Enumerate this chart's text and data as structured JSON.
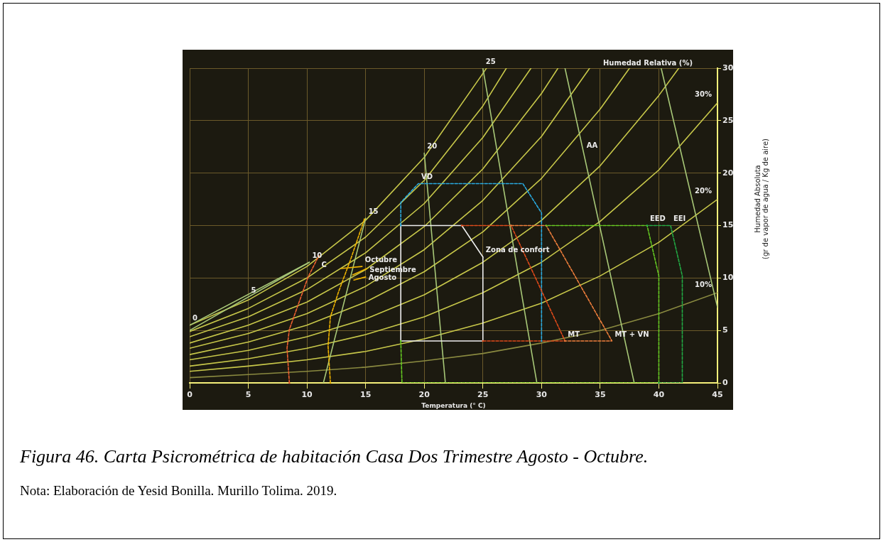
{
  "chart_data": {
    "type": "line",
    "title": "Figura 46. Carta Psicrométrica de habitación Casa Dos Trimestre Agosto - Octubre.",
    "xlabel": "Temperatura (° C)",
    "ylabel": "Humedad Absoluta\n(gr de vapor de agua / Kg de aire)",
    "xlim": [
      0,
      45
    ],
    "xticks": [
      0,
      5,
      10,
      15,
      20,
      25,
      30,
      35,
      40,
      45
    ],
    "ylim": [
      0,
      30
    ],
    "yticks": [
      0,
      5,
      10,
      15,
      20,
      25,
      30
    ],
    "grid": true,
    "marker": "none",
    "series": [
      {
        "color": "#c8c84a",
        "x": [
          0,
          5,
          10,
          15,
          20,
          25,
          25.3
        ],
        "values": [
          5.5,
          7.9,
          11.1,
          15.5,
          21.5,
          29.5,
          30
        ]
      },
      {
        "color": "#c8c84a",
        "x": [
          0,
          5,
          10,
          15,
          20,
          25,
          27
        ],
        "values": [
          4.9,
          7.1,
          10,
          13.9,
          19.3,
          26.4,
          30
        ]
      },
      {
        "color": "#c8c84a",
        "x": [
          0,
          5,
          10,
          15,
          20,
          25,
          29.1
        ],
        "values": [
          4.4,
          6.3,
          8.9,
          12.4,
          17.1,
          23.4,
          30
        ]
      },
      {
        "color": "#c8c84a",
        "x": [
          0,
          5,
          10,
          15,
          20,
          25,
          30,
          31.4
        ],
        "values": [
          3.8,
          5.5,
          7.7,
          10.8,
          14.9,
          20.4,
          27.6,
          30
        ]
      },
      {
        "color": "#c8c84a",
        "x": [
          0,
          5,
          10,
          15,
          20,
          25,
          30,
          34.1
        ],
        "values": [
          3.3,
          4.7,
          6.6,
          9.2,
          12.7,
          17.4,
          23.5,
          30
        ]
      },
      {
        "color": "#c8c84a",
        "x": [
          0,
          5,
          10,
          15,
          20,
          25,
          30,
          35,
          37.5
        ],
        "values": [
          2.7,
          3.9,
          5.5,
          7.7,
          10.6,
          14.4,
          19.5,
          26.1,
          30
        ]
      },
      {
        "color": "#c8c84a",
        "x": [
          0,
          5,
          10,
          15,
          20,
          25,
          30,
          35,
          40,
          41.7
        ],
        "values": [
          2.2,
          3.1,
          4.4,
          6.1,
          8.4,
          11.5,
          15.5,
          20.7,
          27.4,
          30
        ]
      },
      {
        "color": "#c8c84a",
        "x": [
          0,
          5,
          10,
          15,
          20,
          25,
          30,
          35,
          40,
          45
        ],
        "values": [
          1.6,
          2.3,
          3.3,
          4.6,
          6.3,
          8.6,
          11.5,
          15.4,
          20.3,
          26.7
        ]
      },
      {
        "color": "#c8c84a",
        "x": [
          0,
          5,
          10,
          15,
          20,
          25,
          30,
          35,
          40,
          45
        ],
        "values": [
          1.1,
          1.6,
          2.2,
          3,
          4.2,
          5.7,
          7.6,
          10.2,
          13.4,
          17.5
        ]
      },
      {
        "color": "#8a8a40",
        "x": [
          0,
          5,
          10,
          15,
          20,
          25,
          30,
          35,
          40,
          45
        ],
        "values": [
          0.5,
          0.8,
          1.1,
          1.5,
          2.1,
          2.8,
          3.8,
          5,
          6.6,
          8.6
        ]
      },
      {
        "color": "#a8c878",
        "x": [
          0,
          10.2
        ],
        "values": [
          5,
          11.5
        ]
      },
      {
        "color": "#a8c878",
        "x": [
          0,
          10.2
        ],
        "values": [
          5.5,
          11.5
        ]
      },
      {
        "color": "#a8c878",
        "x": [
          11.4,
          15
        ],
        "values": [
          0,
          15.7
        ]
      },
      {
        "color": "#a8c878",
        "x": [
          21.8,
          20
        ],
        "values": [
          0,
          21.9
        ]
      },
      {
        "color": "#a8c878",
        "x": [
          29.6,
          25
        ],
        "values": [
          0,
          30
        ]
      },
      {
        "color": "#a8c878",
        "x": [
          37.9,
          32
        ],
        "values": [
          0,
          30
        ]
      },
      {
        "color": "#a8c878",
        "x": [
          45,
          40.2
        ],
        "values": [
          7.2,
          30
        ]
      },
      {
        "color": "#f06030",
        "line_style": "dashed",
        "x": [
          8.5,
          8.3,
          8.5,
          9.3,
          10.1,
          11
        ],
        "values": [
          0,
          3.3,
          5.1,
          7.6,
          10.1,
          12.1
        ]
      },
      {
        "color": "#f0b400",
        "line_style": "dashed",
        "x": [
          12,
          11.8,
          12,
          12.7,
          13.7,
          14.9
        ],
        "values": [
          0,
          3.5,
          6.3,
          8.7,
          11.7,
          15.6
        ]
      },
      {
        "color": "#f0b400",
        "x": [
          12.9,
          14.7
        ],
        "values": [
          10.9,
          11.1
        ]
      },
      {
        "color": "#f0b400",
        "x": [
          13.9,
          15.1
        ],
        "values": [
          10.3,
          10.9
        ]
      },
      {
        "color": "#f0b400",
        "x": [
          14,
          15
        ],
        "values": [
          9.8,
          10.1
        ]
      },
      {
        "color": "#29abe2",
        "line_style": "dashed",
        "x": [
          18,
          18,
          19.5,
          28.4,
          30,
          30
        ],
        "values": [
          15,
          17.2,
          19,
          19,
          16.2,
          4
        ]
      },
      {
        "color": "#e04a1a",
        "line_style": "dashed",
        "x": [
          23.2,
          27.4,
          32,
          25
        ],
        "values": [
          15,
          15,
          4,
          4
        ]
      },
      {
        "color": "#f07f3c",
        "line_style": "dashed",
        "x": [
          27.4,
          30.4,
          36,
          32
        ],
        "values": [
          15,
          15,
          4,
          4
        ]
      },
      {
        "color": "#66cc22",
        "line_style": "dashed",
        "x": [
          18,
          18.1,
          40,
          40,
          39,
          30.4
        ],
        "values": [
          4,
          0,
          0,
          10.2,
          15,
          15
        ]
      },
      {
        "color": "#22aa44",
        "line_style": "dashed",
        "x": [
          40,
          42,
          42,
          41,
          39
        ],
        "values": [
          0,
          0,
          10.2,
          15,
          15
        ]
      },
      {
        "color": "#eeeeee",
        "x": [
          18,
          18,
          23.2,
          25
        ],
        "values": [
          4,
          15,
          15,
          12
        ]
      },
      {
        "color": "#eeeeee",
        "x": [
          25,
          25,
          18
        ],
        "values": [
          12,
          4,
          4
        ]
      }
    ],
    "annotations": [
      {
        "text": "0",
        "x": 0,
        "y": 5.5
      },
      {
        "text": "5",
        "x": 5,
        "y": 8.2
      },
      {
        "text": "10",
        "x": 10.2,
        "y": 11.5
      },
      {
        "text": "15",
        "x": 15,
        "y": 15.7
      },
      {
        "text": "20",
        "x": 20,
        "y": 21.9
      },
      {
        "text": "25",
        "x": 25,
        "y": 30
      },
      {
        "text": "C",
        "x": 11,
        "y": 12.1
      },
      {
        "text": "VD",
        "x": 19.5,
        "y": 19
      },
      {
        "text": "AA",
        "x": 33.6,
        "y": 22
      },
      {
        "text": "EED",
        "x": 39,
        "y": 15
      },
      {
        "text": "EEI",
        "x": 41,
        "y": 15
      },
      {
        "text": "MT",
        "x": 32,
        "y": 4
      },
      {
        "text": "MT + VN",
        "x": 36,
        "y": 4
      },
      {
        "text": "Zona de confort",
        "x": 25,
        "y": 12
      },
      {
        "text": "Octubre",
        "x": 14.7,
        "y": 11.1
      },
      {
        "text": "Septiembre",
        "x": 15.1,
        "y": 10.9
      },
      {
        "text": "Agosto",
        "x": 15,
        "y": 10.1
      },
      {
        "text": "30%",
        "x": 45,
        "y": 26.7
      },
      {
        "text": "20%",
        "x": 45,
        "y": 17.5
      },
      {
        "text": "10%",
        "x": 45,
        "y": 8.6
      },
      "Humedad Relativa (%)",
      "Nota: Elaboración de Yesid Bonilla. Murillo Tolima. 2019."
    ]
  }
}
